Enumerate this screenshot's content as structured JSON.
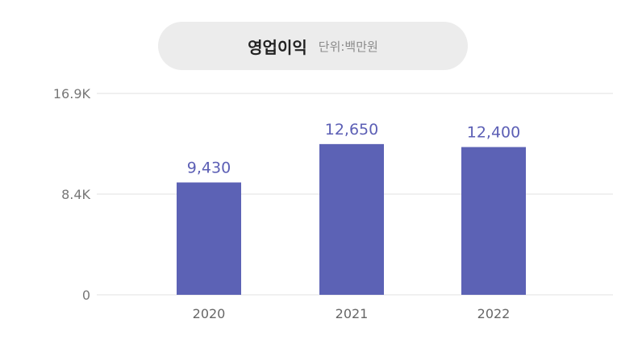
{
  "header": {
    "title": "영업이익",
    "unit": "단위:백만원"
  },
  "colors": {
    "bar": "#5c62b5",
    "data_label": "#5c5fb5",
    "grid": "#f0f0f0",
    "title_bg": "#ececec"
  },
  "chart_data": {
    "type": "bar",
    "title": "영업이익",
    "subtitle": "단위:백만원",
    "categories": [
      "2020",
      "2021",
      "2022"
    ],
    "values": [
      9430,
      12650,
      12400
    ],
    "value_labels": [
      "9,430",
      "12,650",
      "12,400"
    ],
    "ylim": [
      0,
      16900
    ],
    "y_ticks": [
      0,
      8450,
      16900
    ],
    "y_tick_labels": [
      "0",
      "8.4K",
      "16.9K"
    ],
    "grid": true,
    "legend": "none"
  }
}
